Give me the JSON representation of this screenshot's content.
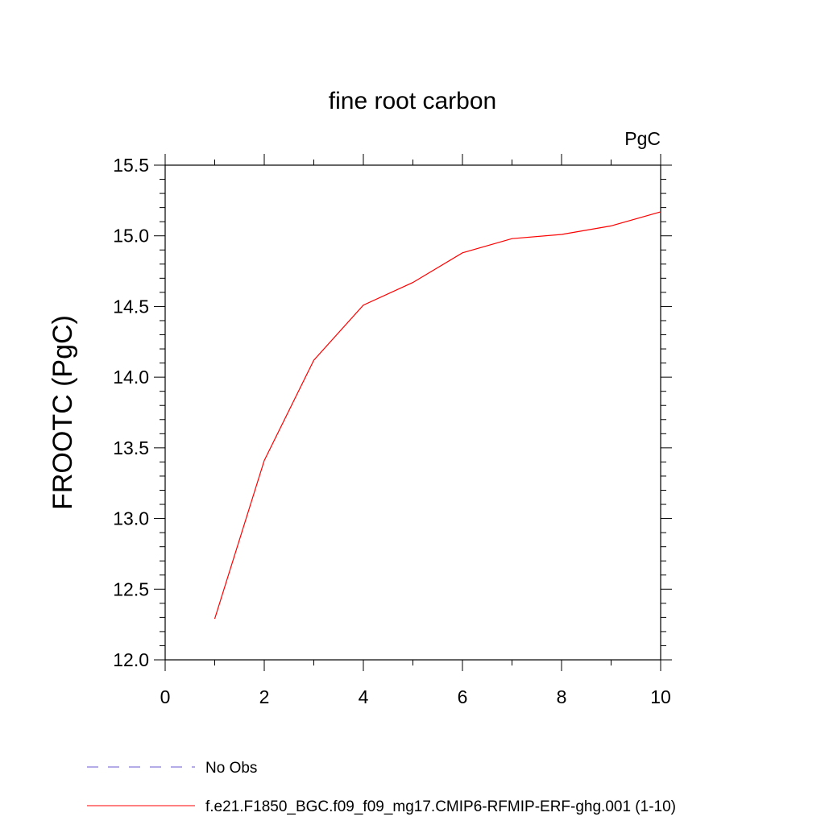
{
  "chart_data": {
    "type": "line",
    "title": "fine root carbon",
    "units": "PgC",
    "xlabel": "",
    "ylabel": "FROOTC  (PgC)",
    "xlim": [
      0,
      10
    ],
    "ylim": [
      12.0,
      15.5
    ],
    "x_ticks": [
      0,
      2,
      4,
      6,
      8,
      10
    ],
    "x_tick_labels": [
      "0",
      "2",
      "4",
      "6",
      "8",
      "10"
    ],
    "y_ticks": [
      12.0,
      12.5,
      13.0,
      13.5,
      14.0,
      14.5,
      15.0,
      15.5
    ],
    "y_tick_labels": [
      "12.0",
      "12.5",
      "13.0",
      "13.5",
      "14.0",
      "14.5",
      "15.0",
      "15.5"
    ],
    "grid": false,
    "legend_position": "bottom",
    "series": [
      {
        "name": "f.e21.F1850_BGC.f09_f09_mg17.CMIP6-RFMIP-ERF-ghg.001 (1-10)",
        "color": "#ff0000",
        "style": "solid",
        "x": [
          1,
          2,
          3,
          4,
          5,
          6,
          7,
          8,
          9,
          10
        ],
        "y": [
          12.29,
          13.41,
          14.12,
          14.51,
          14.67,
          14.88,
          14.98,
          15.01,
          15.07,
          15.17
        ]
      }
    ],
    "legend": [
      {
        "label": "No Obs",
        "color": "#6a5acd",
        "style": "dashed"
      },
      {
        "label": "f.e21.F1850_BGC.f09_f09_mg17.CMIP6-RFMIP-ERF-ghg.001 (1-10)",
        "color": "#ff0000",
        "style": "solid"
      }
    ]
  }
}
